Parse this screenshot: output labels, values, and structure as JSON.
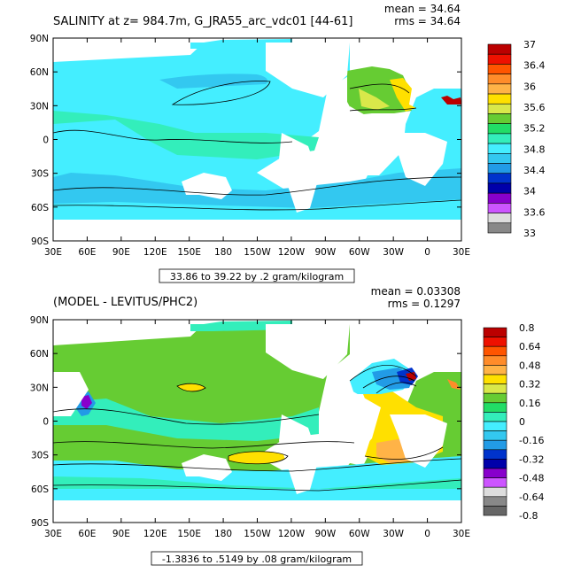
{
  "chart_data": [
    {
      "type": "heatmap",
      "title": "SALINITY at z= 984.7m, G_JRA55_arc_vdc01 [44-61]",
      "stats": {
        "mean": "mean = 34.64",
        "rms": "rms = 34.64"
      },
      "caption": "33.86 to 39.22 by .2 gram/kilogram",
      "x_ticks": [
        "30E",
        "60E",
        "90E",
        "120E",
        "150E",
        "180",
        "150W",
        "120W",
        "90W",
        "60W",
        "30W",
        "0",
        "30E"
      ],
      "y_ticks": [
        "90N",
        "60N",
        "30N",
        "0",
        "30S",
        "60S",
        "90S"
      ],
      "colorbar": {
        "labels": [
          "37",
          "36.4",
          "36",
          "35.6",
          "35.2",
          "34.8",
          "34.4",
          "34",
          "33.6",
          "33"
        ],
        "colors": [
          "#bb0000",
          "#ee1100",
          "#ff5500",
          "#ff8c2a",
          "#ffb347",
          "#ffe000",
          "#d9e84a",
          "#66cc33",
          "#22dd66",
          "#33eebb",
          "#44eeff",
          "#33c8f0",
          "#229be6",
          "#0033cc",
          "#0000aa",
          "#8800cc",
          "#cc55ff",
          "#dddddd",
          "#888888"
        ]
      }
    },
    {
      "type": "heatmap",
      "title": "(MODEL - LEVITUS/PHC2)",
      "stats": {
        "mean": "mean = 0.03308",
        "rms": "rms = 0.1297"
      },
      "caption": "-1.3836 to .5149 by .08 gram/kilogram",
      "x_ticks": [
        "30E",
        "60E",
        "90E",
        "120E",
        "150E",
        "180",
        "150W",
        "120W",
        "90W",
        "60W",
        "30W",
        "0",
        "30E"
      ],
      "y_ticks": [
        "90N",
        "60N",
        "30N",
        "0",
        "30S",
        "60S",
        "90S"
      ],
      "colorbar": {
        "labels": [
          "0.8",
          "0.64",
          "0.48",
          "0.32",
          "0.16",
          "0",
          "-0.16",
          "-0.32",
          "-0.48",
          "-0.64",
          "-0.8"
        ],
        "colors": [
          "#bb0000",
          "#ee1100",
          "#ff5500",
          "#ff8c2a",
          "#ffb347",
          "#ffe000",
          "#d9e84a",
          "#66cc33",
          "#22dd66",
          "#33eebb",
          "#44eeff",
          "#33c8f0",
          "#229be6",
          "#0033cc",
          "#0000aa",
          "#8800cc",
          "#cc55ff",
          "#dddddd",
          "#888888",
          "#666666"
        ]
      }
    }
  ]
}
